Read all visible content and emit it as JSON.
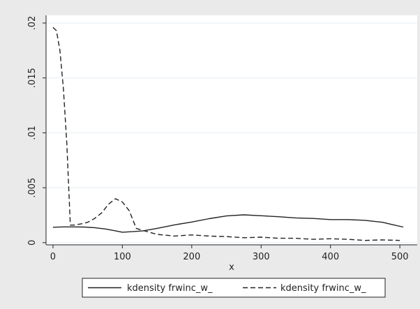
{
  "chart_data": {
    "type": "line",
    "title": "",
    "xlabel": "x",
    "ylabel": "",
    "xlim": [
      -10,
      525
    ],
    "ylim": [
      -0.0002,
      0.0207
    ],
    "x_ticks": [
      0,
      100,
      200,
      300,
      400,
      500
    ],
    "x_tick_labels": [
      "0",
      "100",
      "200",
      "300",
      "400",
      "500"
    ],
    "y_ticks": [
      0,
      0.005,
      0.01,
      0.015,
      0.02
    ],
    "y_tick_labels": [
      "0",
      ".005",
      ".01",
      ".015",
      ".02"
    ],
    "grid": "horizontal",
    "legend_position": "bottom",
    "series": [
      {
        "name": "kdensity frwinc_w_",
        "style": "solid",
        "color": "#222222",
        "x": [
          0,
          15,
          30,
          45,
          60,
          75,
          90,
          100,
          115,
          130,
          150,
          175,
          200,
          225,
          250,
          275,
          300,
          325,
          350,
          375,
          400,
          425,
          450,
          475,
          490,
          505
        ],
        "y": [
          0.0014,
          0.00143,
          0.00143,
          0.00142,
          0.00136,
          0.00125,
          0.00108,
          0.00095,
          0.001,
          0.00108,
          0.0013,
          0.00162,
          0.00188,
          0.00218,
          0.00243,
          0.00253,
          0.00245,
          0.00236,
          0.00225,
          0.0022,
          0.0021,
          0.0021,
          0.00203,
          0.00185,
          0.00163,
          0.00142
        ]
      },
      {
        "name": "kdensity frwinc_w_",
        "style": "dashed",
        "color": "#222222",
        "x": [
          0,
          5,
          10,
          15,
          20,
          25,
          30,
          40,
          50,
          60,
          70,
          80,
          90,
          100,
          110,
          120,
          130,
          150,
          175,
          200,
          225,
          250,
          275,
          300,
          325,
          350,
          375,
          400,
          425,
          450,
          475,
          500
        ],
        "y": [
          0.0196,
          0.0193,
          0.0175,
          0.014,
          0.009,
          0.0016,
          0.0016,
          0.0017,
          0.00185,
          0.0022,
          0.0027,
          0.0035,
          0.004,
          0.0037,
          0.0029,
          0.0013,
          0.0011,
          0.00075,
          0.0006,
          0.0007,
          0.0006,
          0.00055,
          0.00045,
          0.0005,
          0.0004,
          0.0004,
          0.0003,
          0.00035,
          0.0003,
          0.0002,
          0.00025,
          0.0002
        ]
      }
    ]
  }
}
